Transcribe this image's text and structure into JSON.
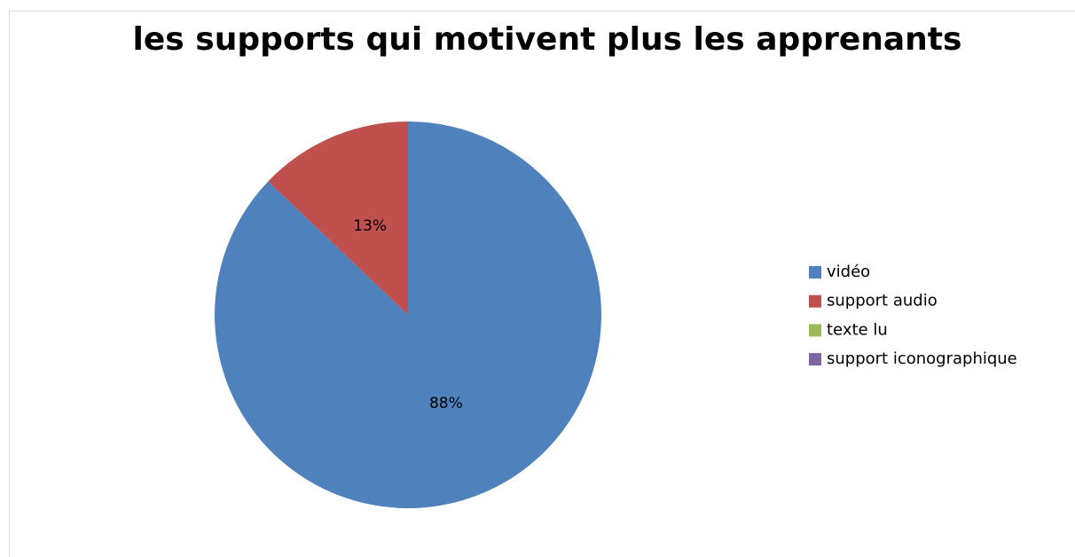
{
  "chart_data": {
    "type": "pie",
    "title": "les supports qui motivent plus les apprenants",
    "categories": [
      "vidéo",
      "support audio",
      "texte lu",
      "support iconographique"
    ],
    "values": [
      88,
      13,
      0,
      0
    ],
    "value_labels": [
      "88%",
      "13%",
      null,
      null
    ],
    "colors": [
      "#4f81bd",
      "#c0504d",
      "#9bbb59",
      "#8064a2"
    ],
    "legend": "right"
  }
}
